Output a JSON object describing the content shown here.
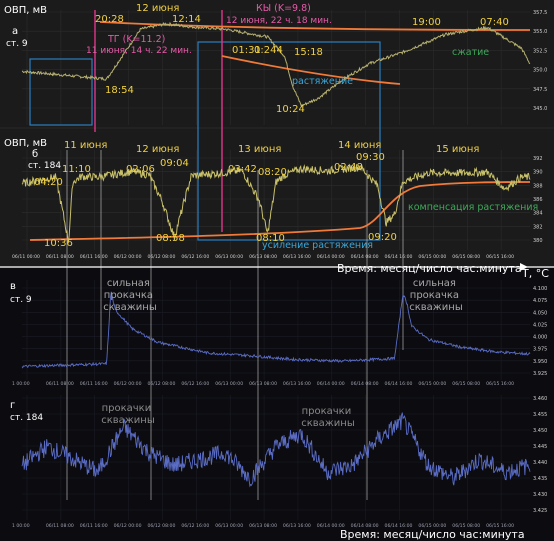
{
  "colors": {
    "bg_top": "#1b1b1b",
    "bg_bottom": "#0b0b10",
    "orp_trace": "#c8c06a",
    "orp_trace_a": "#b6b070",
    "temp_trace": "#5a6cc4",
    "envelope": "#f07a3a",
    "marker_magenta": "#e0358a",
    "box_blue": "#2a7fc0",
    "label_yellow": "#f0d040",
    "label_magenta": "#e65aa8",
    "label_cyan": "#3aa6d8",
    "label_green": "#3ea85a",
    "label_gray": "#9a9a9a",
    "text_white": "#ffffff"
  },
  "panel_a": {
    "ylabel": "ОВП, мВ",
    "letter": "а",
    "station": "ст. 9",
    "yticks": [
      "357.5",
      "355.0",
      "352.5",
      "350.0",
      "347.5",
      "345.0"
    ],
    "date_labels": [
      "12 июня"
    ],
    "times": [
      "20:28",
      "12:14",
      "18:54",
      "01:31",
      "0:244",
      "15:18",
      "10:24",
      "19:00",
      "07:40"
    ],
    "tg_label": "ТГ (K=11.2)",
    "tg_time": "11 июня, 14 ч. 22 мин.",
    "ky_label": "КЫ (K=9.8)",
    "ky_time": "12 июня, 22 ч. 18 мин.",
    "stretch": "растяжение",
    "compress": "сжатие"
  },
  "panel_b": {
    "ylabel": "ОВП, мВ",
    "letter": "б",
    "station": "ст. 184",
    "yticks": [
      "392",
      "390",
      "388",
      "386",
      "384",
      "382",
      "380"
    ],
    "date_labels": [
      "11 июня",
      "12 июня",
      "13 июня",
      "14 июня",
      "15 июня"
    ],
    "times": [
      "04:20",
      "11:10",
      "10:36",
      "02:06",
      "09:04",
      "08:58",
      "03:42",
      "08:20",
      "08:10",
      "02:48",
      "09:30",
      "09:20"
    ],
    "compensation": "компенсация растяжения",
    "amplify": "усиление растяжения",
    "xticks": [
      "06/11 00:00",
      "06/11 08:00",
      "06/11 16:00",
      "06/12 00:00",
      "06/12 08:00",
      "06/12 16:00",
      "06/13 00:00",
      "06/13 08:00",
      "06/13 16:00",
      "06/14 00:00",
      "06/14 08:00",
      "06/14 16:00",
      "06/15 00:00",
      "06/15 08:00",
      "06/15 16:00"
    ]
  },
  "time_axis_label": "Время: месяц/число час:минута",
  "temp_unit": "T, °C",
  "panel_v": {
    "letter": "в",
    "station": "ст. 9",
    "annotation_1": "сильная прокачка скважины",
    "annotation_2": "сильная прокачка скважины",
    "yticks": [
      "4.100",
      "4.075",
      "4.050",
      "4.025",
      "4.000",
      "3.975",
      "3.950",
      "3.925"
    ]
  },
  "panel_g": {
    "letter": "г",
    "station": "ст. 184",
    "annotation_1": "прокачки скважины",
    "annotation_2": "прокачки скважины",
    "yticks": [
      "3.460",
      "3.455",
      "3.450",
      "3.445",
      "3.440",
      "3.435",
      "3.430",
      "3.425"
    ]
  },
  "bottom_xticks": [
    "1 00:00",
    "06/11 08:00",
    "06/11 16:00",
    "06/12 00:00",
    "06/12 08:00",
    "06/12 16:00",
    "06/13 00:00",
    "06/13 08:00",
    "06/13 16:00",
    "06/14 00:00",
    "06/14 08:00",
    "06/14 16:00",
    "06/15 00:00",
    "06/15 08:00",
    "06/15 16:00"
  ],
  "chart_data": [
    {
      "type": "line",
      "title": "",
      "ylabel": "ОВП, мВ",
      "ylim": [
        344,
        359
      ],
      "series": [
        {
          "x_hours": [
            0,
            10,
            20,
            28,
            34,
            40,
            48,
            58,
            62,
            64,
            66,
            70,
            76,
            82,
            90,
            100,
            104,
            110,
            118,
            120
          ],
          "values": [
            351,
            350.5,
            350,
            356.5,
            357.2,
            356.8,
            356.5,
            355.5,
            353,
            349,
            346.5,
            347.5,
            350,
            352,
            353.5,
            355.8,
            356.2,
            356.7,
            354,
            352
          ]
        }
      ]
    },
    {
      "type": "line",
      "title": "",
      "ylabel": "ОВП, мВ",
      "ylim": [
        379,
        393
      ],
      "series": [
        {
          "x_hours": [
            0,
            4,
            8,
            11,
            12,
            14,
            18,
            26,
            30,
            33,
            36,
            40,
            44,
            52,
            56,
            58,
            60,
            62,
            66,
            72,
            80,
            84,
            86,
            88,
            90,
            96,
            104,
            110,
            114,
            118,
            120
          ],
          "values": [
            388.3,
            388.8,
            389.2,
            380.2,
            388.5,
            389.3,
            389.2,
            390,
            389.5,
            386,
            380.8,
            389.4,
            389.6,
            390.1,
            386,
            381.2,
            388.5,
            389.5,
            390.4,
            390.1,
            390.6,
            388,
            382.8,
            384,
            388.6,
            389.8,
            389.8,
            389.9,
            387.6,
            389.2,
            389.2
          ]
        }
      ]
    },
    {
      "type": "line",
      "title": "",
      "ylabel": "T, °C",
      "ylim": [
        3.92,
        4.105
      ],
      "series": [
        {
          "x_hours": [
            0,
            12,
            20,
            21,
            22,
            26,
            32,
            44,
            54,
            64,
            76,
            88,
            90,
            91,
            92,
            96,
            104,
            112,
            120
          ],
          "values": [
            3.945,
            3.948,
            3.95,
            4.085,
            4.05,
            4.015,
            3.99,
            3.97,
            3.965,
            3.958,
            3.955,
            3.96,
            4.08,
            4.06,
            4.02,
            3.995,
            3.98,
            3.972,
            3.968
          ]
        }
      ]
    },
    {
      "type": "line",
      "title": "",
      "ylabel": "T, °C",
      "ylim": [
        3.423,
        3.462
      ],
      "series": [
        {
          "x_hours": [
            0,
            6,
            12,
            18,
            24,
            30,
            36,
            42,
            48,
            54,
            60,
            66,
            72,
            78,
            84,
            90,
            96,
            102,
            108,
            114,
            120
          ],
          "values": [
            3.44,
            3.446,
            3.442,
            3.438,
            3.452,
            3.444,
            3.44,
            3.442,
            3.444,
            3.436,
            3.446,
            3.45,
            3.438,
            3.44,
            3.448,
            3.454,
            3.44,
            3.436,
            3.442,
            3.438,
            3.44
          ]
        }
      ]
    }
  ]
}
